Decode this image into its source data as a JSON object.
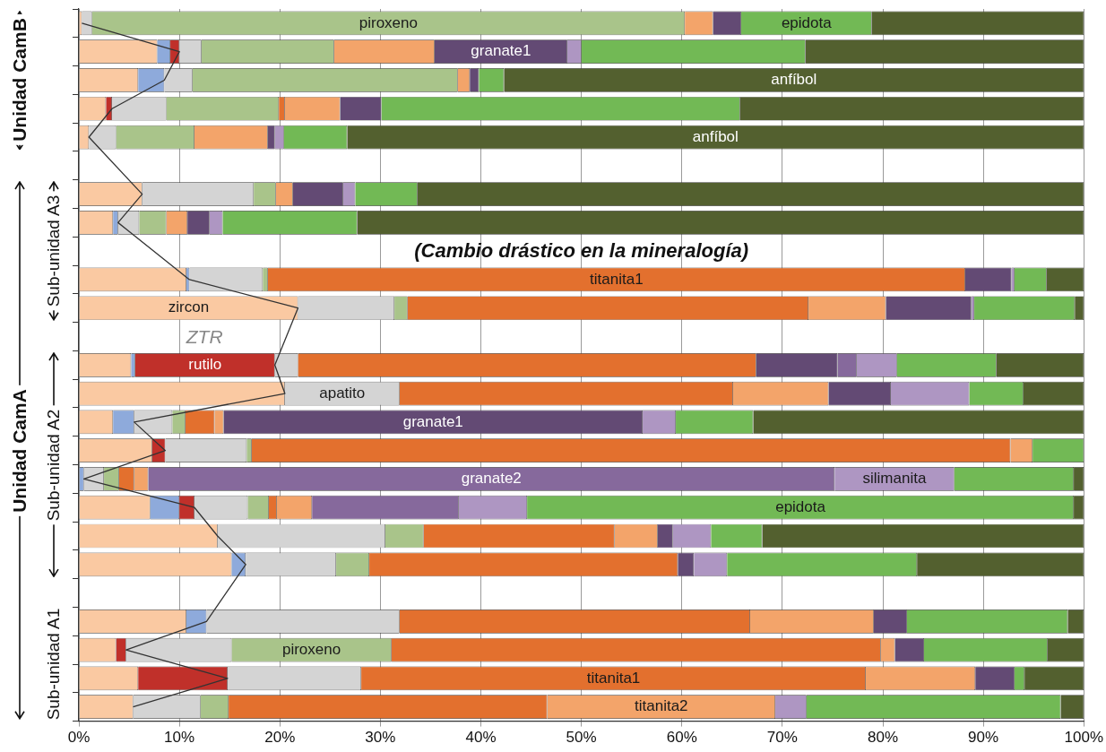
{
  "chart_data": {
    "type": "bar",
    "orientation": "horizontal",
    "stacked": true,
    "grid": "x",
    "legend": false,
    "annotations": [
      "Unidad CamB",
      "Unidad CamA",
      "Sub-unidad A3",
      "Sub-unidad A2",
      "Sub-unidad A1",
      "(Cambio drástico en la mineralogía)",
      "ZTR"
    ],
    "categories": [
      null,
      null,
      null,
      null,
      null,
      null,
      null,
      null,
      null,
      null,
      null,
      null,
      null,
      null,
      null,
      null,
      null,
      null,
      null,
      null,
      null,
      null,
      null,
      null,
      null
    ],
    "xlim": [
      0,
      100
    ],
    "xticks": [
      {
        "value": 0,
        "label": "0%"
      },
      {
        "value": 10,
        "label": "10%"
      },
      {
        "value": 20,
        "label": "20%"
      },
      {
        "value": 30,
        "label": "30%"
      },
      {
        "value": 40,
        "label": "40%"
      },
      {
        "value": 50,
        "label": "50%"
      },
      {
        "value": 60,
        "label": "60%"
      },
      {
        "value": 70,
        "label": "70%"
      },
      {
        "value": 80,
        "label": "80%"
      },
      {
        "value": 90,
        "label": "90%"
      },
      {
        "value": 100,
        "label": "100%"
      }
    ],
    "series": [
      {
        "color": "#fac9a2",
        "values": [
          0.3,
          7.8,
          5.9,
          2.7,
          1.0,
          null,
          6.3,
          3.4,
          null,
          10.7,
          21.8,
          null,
          5.2,
          20.5,
          3.4,
          7.3,
          null,
          7.1,
          13.8,
          15.2,
          null,
          10.7,
          3.7,
          5.9,
          5.4
        ],
        "value_labels": [
          null,
          null,
          null,
          null,
          null,
          null,
          null,
          null,
          null,
          null,
          "zircon",
          null,
          null,
          null,
          null,
          null,
          null,
          null,
          null,
          null,
          null,
          null,
          null,
          null,
          null
        ]
      },
      {
        "color": "#8eaadb",
        "values": [
          null,
          1.3,
          2.6,
          null,
          null,
          null,
          null,
          0.5,
          null,
          0.3,
          null,
          null,
          0.4,
          null,
          2.1,
          null,
          0.5,
          2.9,
          null,
          1.4,
          null,
          2.0,
          null,
          null,
          null
        ]
      },
      {
        "color": "#c0302a",
        "values": [
          null,
          0.9,
          null,
          0.6,
          null,
          null,
          null,
          null,
          null,
          null,
          null,
          null,
          13.9,
          null,
          null,
          1.3,
          null,
          1.5,
          null,
          null,
          null,
          null,
          1.0,
          8.9,
          null
        ],
        "value_labels": [
          null,
          null,
          null,
          null,
          null,
          null,
          null,
          null,
          null,
          null,
          null,
          null,
          "rutilo",
          null,
          null,
          null,
          null,
          null,
          null,
          null,
          null,
          null,
          null,
          null,
          null
        ]
      },
      {
        "color": "#d4d4d4",
        "values": [
          1.0,
          2.2,
          2.8,
          5.4,
          2.7,
          null,
          11.1,
          2.1,
          null,
          7.3,
          9.6,
          null,
          2.3,
          11.4,
          3.8,
          8.1,
          2.0,
          5.3,
          16.7,
          9.0,
          null,
          19.2,
          10.5,
          13.3,
          6.7
        ],
        "value_labels": [
          null,
          null,
          null,
          null,
          null,
          null,
          null,
          null,
          null,
          null,
          null,
          null,
          null,
          "apatito",
          null,
          null,
          null,
          null,
          null,
          null,
          null,
          null,
          null,
          null,
          null
        ]
      },
      {
        "color": "#a9c48a",
        "values": [
          59.0,
          13.2,
          26.4,
          11.2,
          7.8,
          null,
          2.2,
          2.7,
          null,
          0.5,
          1.3,
          null,
          null,
          null,
          1.3,
          0.5,
          1.5,
          2.1,
          3.8,
          3.3,
          null,
          null,
          15.9,
          null,
          2.8
        ],
        "value_labels": [
          "piroxeno",
          null,
          null,
          null,
          null,
          null,
          null,
          null,
          null,
          null,
          null,
          null,
          null,
          null,
          null,
          null,
          null,
          null,
          null,
          null,
          null,
          null,
          "piroxeno",
          null,
          null
        ]
      },
      {
        "color": "#e3702e",
        "values": [
          null,
          null,
          null,
          0.6,
          null,
          null,
          null,
          null,
          null,
          69.4,
          39.9,
          null,
          45.6,
          33.2,
          2.9,
          75.5,
          1.5,
          0.8,
          19.0,
          30.7,
          null,
          34.9,
          48.7,
          50.2,
          31.7
        ],
        "value_labels": [
          null,
          null,
          null,
          null,
          null,
          null,
          null,
          null,
          null,
          "titanita1",
          null,
          null,
          null,
          null,
          null,
          null,
          null,
          null,
          null,
          null,
          null,
          null,
          null,
          "titanita1",
          null
        ]
      },
      {
        "color": "#f3a46a",
        "values": [
          2.8,
          10.0,
          1.2,
          5.5,
          7.3,
          null,
          1.7,
          2.1,
          null,
          null,
          7.7,
          null,
          null,
          9.5,
          0.9,
          2.2,
          1.4,
          3.5,
          4.3,
          null,
          null,
          12.3,
          1.4,
          10.9,
          22.7
        ],
        "value_labels": [
          null,
          null,
          null,
          null,
          null,
          null,
          null,
          null,
          null,
          null,
          null,
          null,
          null,
          null,
          null,
          null,
          null,
          null,
          null,
          null,
          null,
          null,
          null,
          null,
          "titanita2"
        ]
      },
      {
        "color": "#634a74",
        "values": [
          2.8,
          13.2,
          0.9,
          4.1,
          0.7,
          null,
          5.0,
          2.2,
          null,
          4.6,
          8.5,
          null,
          8.1,
          6.2,
          41.7,
          null,
          null,
          null,
          1.5,
          1.6,
          null,
          3.3,
          2.9,
          3.9,
          null
        ],
        "value_labels": [
          null,
          "granate1",
          null,
          null,
          null,
          null,
          null,
          null,
          null,
          null,
          null,
          null,
          null,
          null,
          "granate1",
          null,
          null,
          null,
          null,
          null,
          null,
          null,
          null,
          null,
          null
        ]
      },
      {
        "color": "#86699c",
        "values": [
          null,
          null,
          null,
          null,
          null,
          null,
          null,
          null,
          null,
          null,
          null,
          null,
          1.9,
          null,
          null,
          null,
          68.3,
          14.6,
          null,
          null,
          null,
          null,
          null,
          null,
          null
        ],
        "value_labels": [
          null,
          null,
          null,
          null,
          null,
          null,
          null,
          null,
          null,
          null,
          null,
          null,
          null,
          null,
          null,
          null,
          "granate2",
          null,
          null,
          null,
          null,
          null,
          null,
          null,
          null
        ]
      },
      {
        "color": "#ae96c2",
        "values": [
          null,
          1.4,
          null,
          null,
          0.9,
          null,
          1.2,
          1.3,
          null,
          0.3,
          0.3,
          null,
          4.0,
          7.8,
          3.3,
          null,
          11.9,
          6.8,
          3.8,
          3.3,
          null,
          null,
          null,
          null,
          3.1
        ],
        "value_labels": [
          null,
          null,
          null,
          null,
          null,
          null,
          null,
          null,
          null,
          null,
          null,
          null,
          null,
          null,
          null,
          null,
          "silimanita",
          null,
          null,
          null,
          null,
          null,
          null,
          null,
          null
        ]
      },
      {
        "color": "#72b955",
        "values": [
          13.0,
          22.3,
          2.5,
          35.7,
          6.3,
          null,
          6.2,
          13.4,
          null,
          3.2,
          10.0,
          null,
          9.9,
          5.4,
          7.7,
          5.1,
          11.9,
          54.4,
          5.1,
          18.9,
          null,
          16.0,
          12.3,
          1.0,
          25.3
        ],
        "value_labels": [
          "epidota",
          null,
          null,
          null,
          null,
          null,
          null,
          null,
          null,
          null,
          null,
          null,
          null,
          null,
          null,
          null,
          null,
          "epidota",
          null,
          null,
          null,
          null,
          null,
          null,
          null
        ]
      },
      {
        "type": "line",
        "color": "#333333",
        "values": [
          0.3,
          10.0,
          8.5,
          3.3,
          1.0,
          null,
          6.3,
          3.9,
          null,
          11.0,
          21.8,
          null,
          19.5,
          20.5,
          5.5,
          8.6,
          0.5,
          11.5,
          13.8,
          16.6,
          null,
          12.7,
          4.7,
          14.8,
          5.4
        ]
      },
      {
        "color": "#53602f",
        "values": [
          21.1,
          27.7,
          57.7,
          34.2,
          73.3,
          null,
          66.3,
          72.3,
          null,
          3.7,
          0.9,
          null,
          8.7,
          6.0,
          32.9,
          null,
          1.0,
          1.0,
          32.0,
          16.6,
          null,
          1.6,
          3.6,
          5.9,
          2.3
        ],
        "value_labels": [
          null,
          null,
          "anfíbol",
          null,
          "anfíbol",
          null,
          null,
          null,
          null,
          null,
          null,
          null,
          null,
          null,
          null,
          null,
          null,
          null,
          null,
          null,
          null,
          null,
          null,
          null,
          null
        ]
      }
    ]
  }
}
